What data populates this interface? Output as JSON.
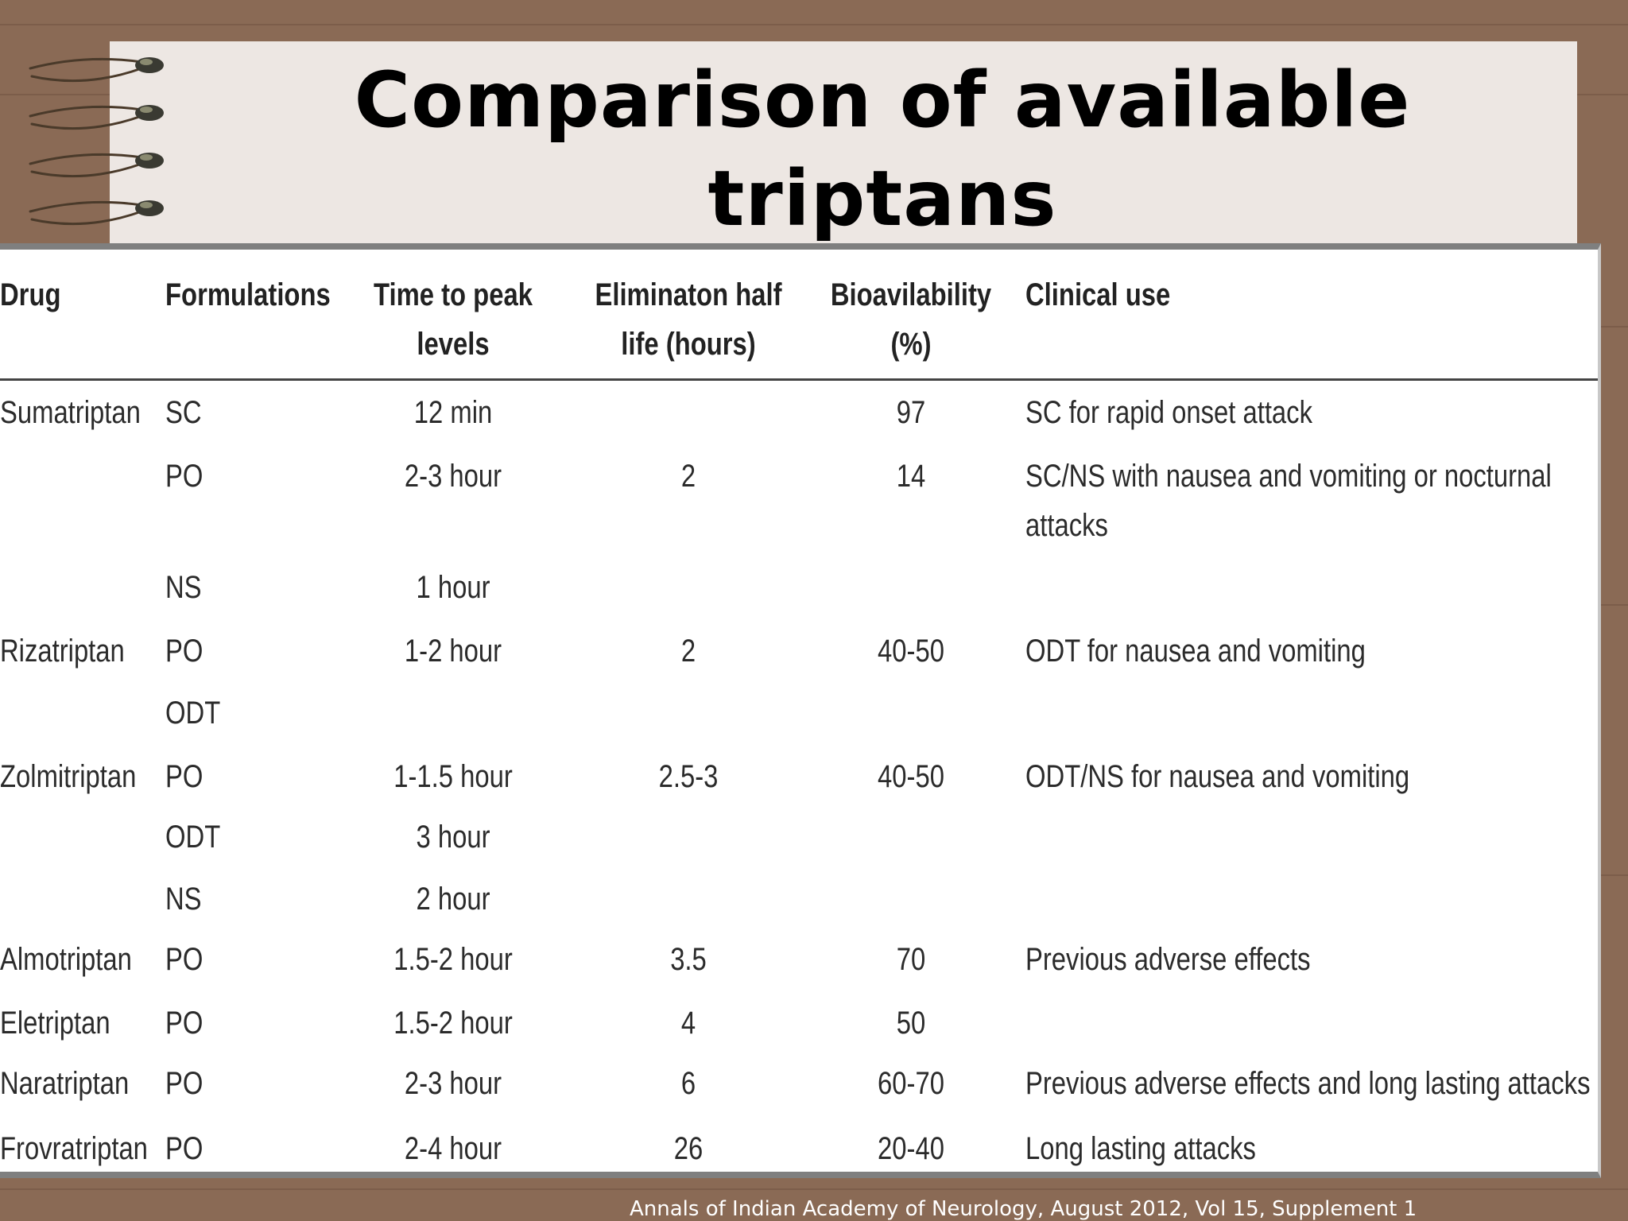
{
  "slide": {
    "title_line1": "Comparison of available",
    "title_line2": "triptans",
    "citation": "Annals of Indian Academy of Neurology, August 2012, Vol 15, Supplement 1"
  },
  "table": {
    "headers": {
      "drug": "Drug",
      "formulations": "Formulations",
      "time_line1": "Time to peak",
      "time_line2": "levels",
      "half_line1": "Eliminaton half",
      "half_line2": "life (hours)",
      "bio_line1": "Bioavilability",
      "bio_line2": "(%)",
      "clinical": "Clinical use"
    },
    "rows": [
      {
        "drug": "Sumatriptan",
        "form": "SC",
        "time": "12 min",
        "half": "",
        "bio": "97",
        "use1": "SC for rapid onset attack",
        "use2": ""
      },
      {
        "drug": "",
        "form": "PO",
        "time": "2-3 hour",
        "half": "2",
        "bio": "14",
        "use1": "SC/NS with nausea and vomiting or nocturnal",
        "use2": "attacks"
      },
      {
        "drug": "",
        "form": "NS",
        "time": "1 hour",
        "half": "",
        "bio": "",
        "use1": "",
        "use2": ""
      },
      {
        "drug": "Rizatriptan",
        "form": "PO",
        "time": "1-2 hour",
        "half": "2",
        "bio": "40-50",
        "use1": "ODT for nausea and vomiting",
        "use2": ""
      },
      {
        "drug": "",
        "form": "ODT",
        "time": "",
        "half": "",
        "bio": "",
        "use1": "",
        "use2": ""
      },
      {
        "drug": "Zolmitriptan",
        "form": "PO",
        "time": "1-1.5 hour",
        "half": "2.5-3",
        "bio": "40-50",
        "use1": "ODT/NS for nausea and vomiting",
        "use2": ""
      },
      {
        "drug": "",
        "form": "ODT",
        "time": "3 hour",
        "half": "",
        "bio": "",
        "use1": "",
        "use2": ""
      },
      {
        "drug": "",
        "form": "NS",
        "time": "2 hour",
        "half": "",
        "bio": "",
        "use1": "",
        "use2": ""
      },
      {
        "drug": "Almotriptan",
        "form": "PO",
        "time": "1.5-2 hour",
        "half": "3.5",
        "bio": "70",
        "use1": "Previous adverse effects",
        "use2": ""
      },
      {
        "drug": "Eletriptan",
        "form": "PO",
        "time": "1.5-2 hour",
        "half": "4",
        "bio": "50",
        "use1": "",
        "use2": ""
      },
      {
        "drug": "Naratriptan",
        "form": "PO",
        "time": "2-3 hour",
        "half": "6",
        "bio": "60-70",
        "use1": "Previous adverse effects and long lasting attacks",
        "use2": ""
      },
      {
        "drug": "Frovratriptan",
        "form": "PO",
        "time": "2-4 hour",
        "half": "26",
        "bio": "20-40",
        "use1": "Long lasting attacks",
        "use2": ""
      }
    ]
  }
}
